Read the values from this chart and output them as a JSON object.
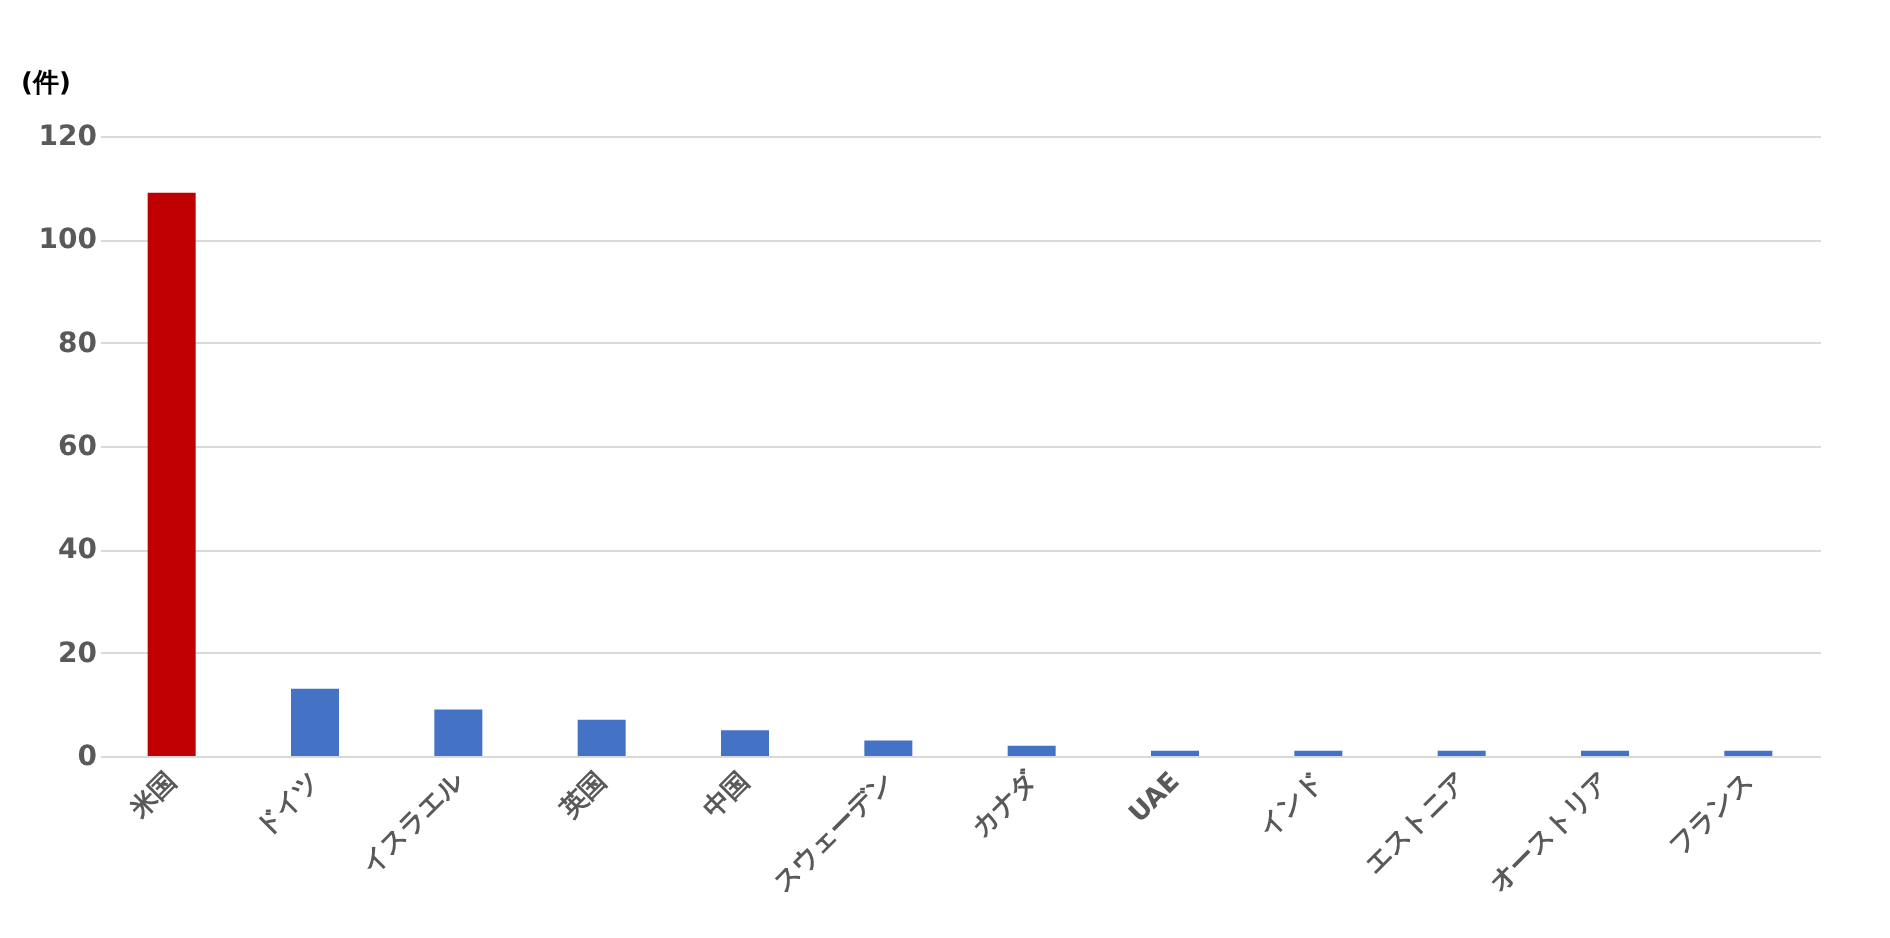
{
  "chart_data": {
    "type": "bar",
    "ylabel": "(件)",
    "categories": [
      "米国",
      "ドイツ",
      "イスラエル",
      "英国",
      "中国",
      "スウェーデン",
      "カナダ",
      "UAE",
      "インド",
      "エストニア",
      "オーストリア",
      "フランス"
    ],
    "values": [
      109,
      13,
      9,
      7,
      5,
      3,
      2,
      1,
      1,
      1,
      1,
      1
    ],
    "colors": [
      "#c00000",
      "#4472c4",
      "#4472c4",
      "#4472c4",
      "#4472c4",
      "#4472c4",
      "#4472c4",
      "#4472c4",
      "#4472c4",
      "#4472c4",
      "#4472c4",
      "#4472c4"
    ],
    "ylim": [
      0,
      120
    ],
    "yticks": [
      0,
      20,
      40,
      60,
      80,
      100,
      120
    ],
    "grid": "y"
  }
}
